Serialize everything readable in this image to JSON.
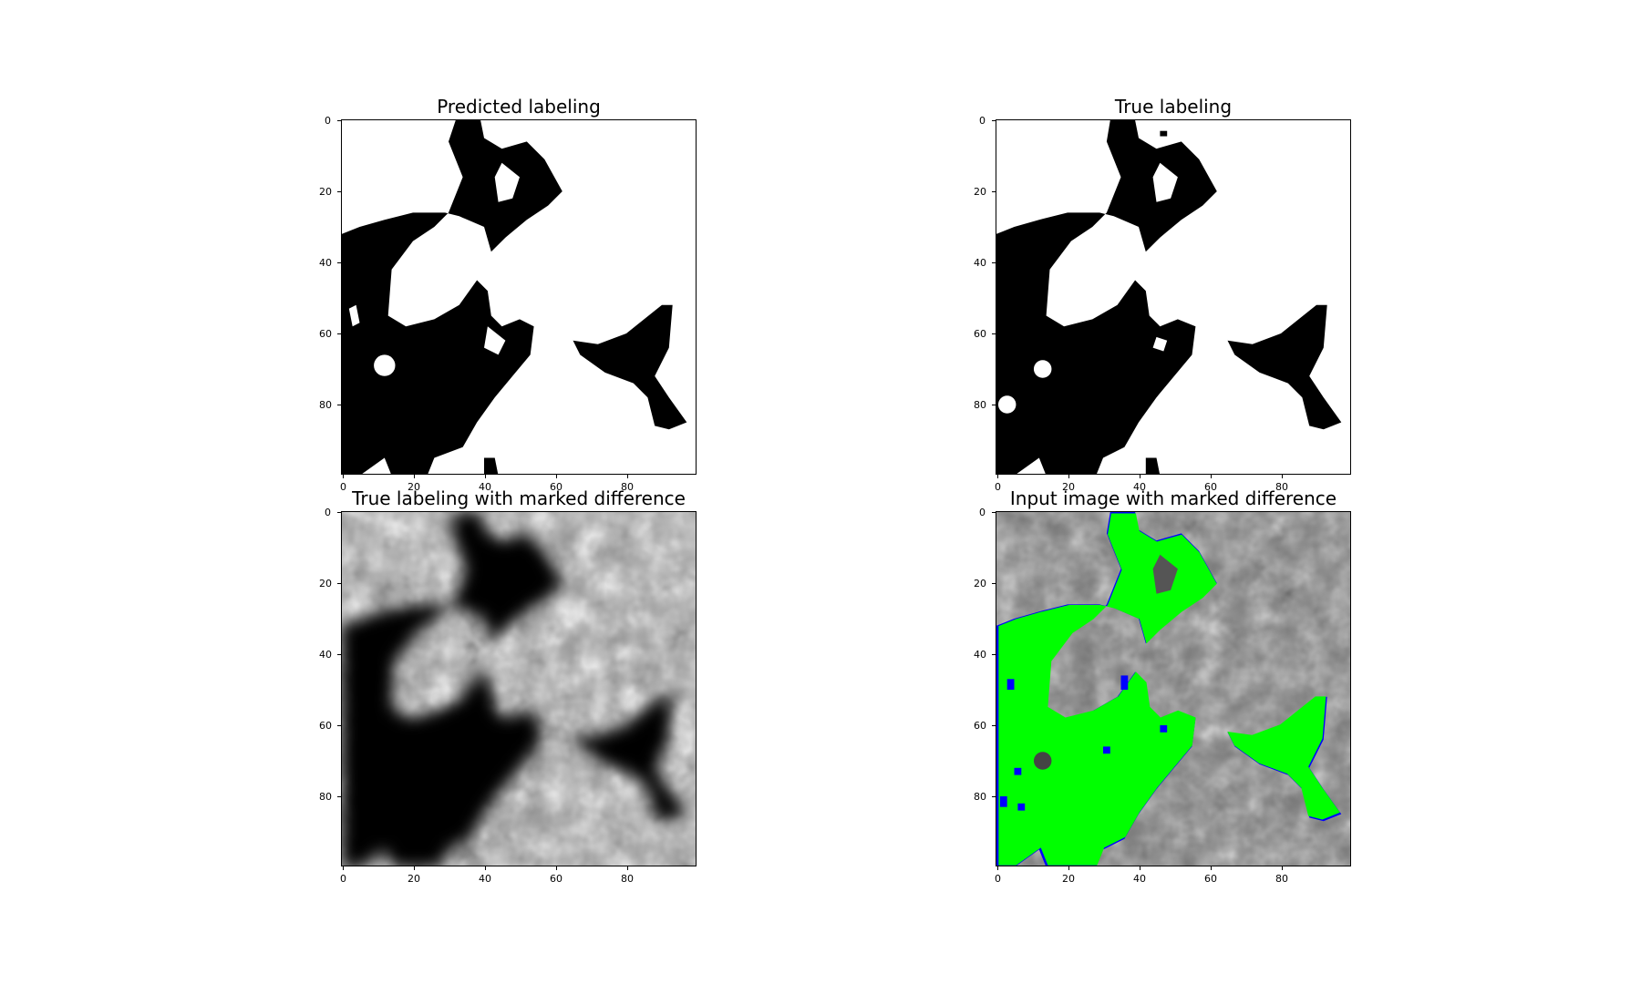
{
  "figure": {
    "axis_ticks": [
      "0",
      "20",
      "40",
      "60",
      "80"
    ],
    "panels": [
      {
        "id": "predicted",
        "title": "Predicted labeling",
        "kind": "binary"
      },
      {
        "id": "true",
        "title": "True labeling",
        "kind": "binary"
      },
      {
        "id": "true-diff",
        "title": "True labeling with marked difference",
        "kind": "gray-dark"
      },
      {
        "id": "input-diff",
        "title": "Input image with marked difference",
        "kind": "overlay"
      }
    ]
  },
  "colors": {
    "foreground_black": "#000000",
    "background_white": "#ffffff",
    "overlay_green": "#00ff00",
    "overlay_blue": "#0000ff"
  }
}
